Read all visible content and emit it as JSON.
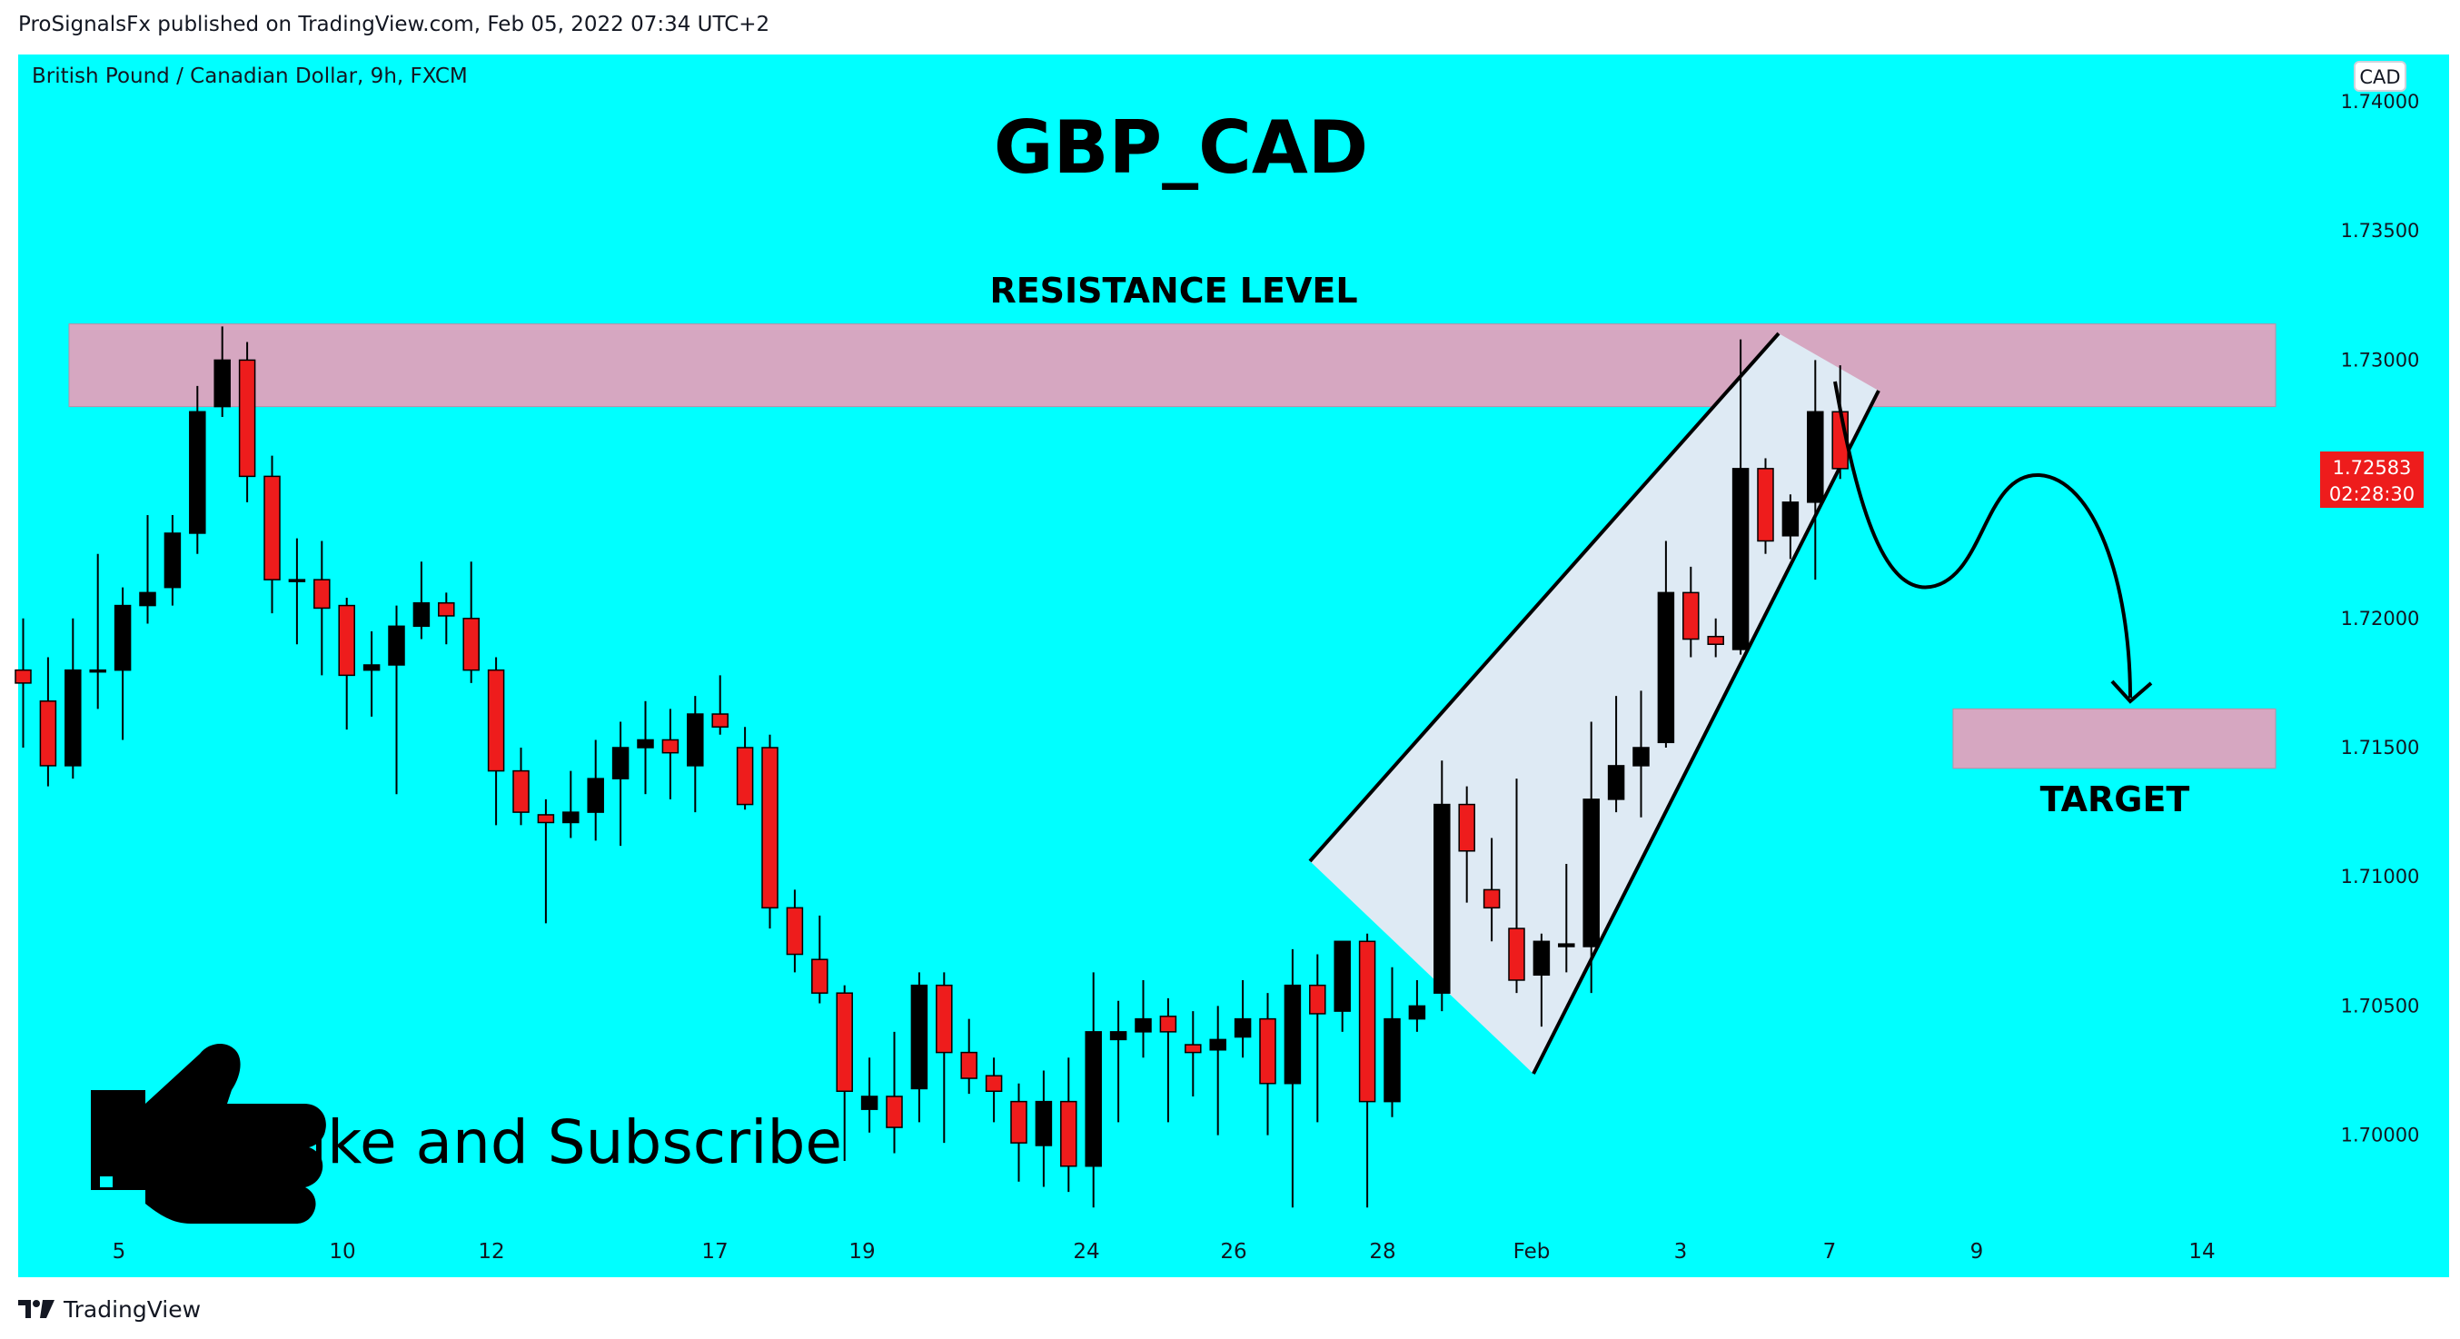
{
  "header": {
    "published": "ProSignalsFx published on TradingView.com, Feb 05, 2022 07:34 UTC+2"
  },
  "symbol": "British Pound / Canadian Dollar, 9h, FXCM",
  "currency_badge": "CAD",
  "price_label": {
    "price": "1.72583",
    "countdown": "02:28:30"
  },
  "footer": {
    "brand": "TradingView"
  },
  "colors": {
    "background": "#00ffff",
    "up": "#000000",
    "down": "#ee1c1c",
    "zone": "#d6a7c1",
    "wedge": "#deeaf4"
  },
  "chart_data": {
    "type": "candlestick",
    "title": "GBP_CAD",
    "annotations": [
      "RESISTANCE LEVEL",
      "TARGET",
      "Like and Subscribe"
    ],
    "y_axis": {
      "ticks": [
        "1.74000",
        "1.73500",
        "1.73000",
        "1.72500",
        "1.72000",
        "1.71500",
        "1.71000",
        "1.70500",
        "1.70000"
      ],
      "ylim": [
        1.6955,
        1.7412
      ],
      "last": 1.72583
    },
    "x_axis": {
      "ticks": [
        "5",
        "10",
        "12",
        "17",
        "19",
        "24",
        "26",
        "28",
        "Feb",
        "3",
        "7",
        "9",
        "14"
      ]
    },
    "zones": [
      {
        "label": "RESISTANCE LEVEL",
        "from": 1.7282,
        "to": 1.7314
      },
      {
        "label": "TARGET",
        "from": 1.7142,
        "to": 1.7165
      }
    ],
    "candles": [
      {
        "o": 1.718,
        "h": 1.72,
        "l": 1.715,
        "c": 1.7175
      },
      {
        "o": 1.7168,
        "h": 1.7185,
        "l": 1.7135,
        "c": 1.7143
      },
      {
        "o": 1.7143,
        "h": 1.72,
        "l": 1.7138,
        "c": 1.718
      },
      {
        "o": 1.718,
        "h": 1.7225,
        "l": 1.7165,
        "c": 1.718
      },
      {
        "o": 1.718,
        "h": 1.7212,
        "l": 1.7153,
        "c": 1.7205
      },
      {
        "o": 1.7205,
        "h": 1.724,
        "l": 1.7198,
        "c": 1.721
      },
      {
        "o": 1.7212,
        "h": 1.724,
        "l": 1.7205,
        "c": 1.7233
      },
      {
        "o": 1.7233,
        "h": 1.729,
        "l": 1.7225,
        "c": 1.728
      },
      {
        "o": 1.7282,
        "h": 1.7313,
        "l": 1.7278,
        "c": 1.73
      },
      {
        "o": 1.73,
        "h": 1.7307,
        "l": 1.7245,
        "c": 1.7255
      },
      {
        "o": 1.7255,
        "h": 1.7263,
        "l": 1.7202,
        "c": 1.7215
      },
      {
        "o": 1.7215,
        "h": 1.7231,
        "l": 1.719,
        "c": 1.7215
      },
      {
        "o": 1.7215,
        "h": 1.723,
        "l": 1.7178,
        "c": 1.7204
      },
      {
        "o": 1.7205,
        "h": 1.7208,
        "l": 1.7157,
        "c": 1.7178
      },
      {
        "o": 1.718,
        "h": 1.7195,
        "l": 1.7162,
        "c": 1.7182
      },
      {
        "o": 1.7182,
        "h": 1.7205,
        "l": 1.7132,
        "c": 1.7197
      },
      {
        "o": 1.7197,
        "h": 1.7222,
        "l": 1.7192,
        "c": 1.7206
      },
      {
        "o": 1.7206,
        "h": 1.721,
        "l": 1.719,
        "c": 1.7201
      },
      {
        "o": 1.72,
        "h": 1.7222,
        "l": 1.7175,
        "c": 1.718
      },
      {
        "o": 1.718,
        "h": 1.7185,
        "l": 1.712,
        "c": 1.7141
      },
      {
        "o": 1.7141,
        "h": 1.715,
        "l": 1.712,
        "c": 1.7125
      },
      {
        "o": 1.7124,
        "h": 1.713,
        "l": 1.7082,
        "c": 1.7121
      },
      {
        "o": 1.7121,
        "h": 1.7141,
        "l": 1.7115,
        "c": 1.7125
      },
      {
        "o": 1.7125,
        "h": 1.7153,
        "l": 1.7114,
        "c": 1.7138
      },
      {
        "o": 1.7138,
        "h": 1.716,
        "l": 1.7112,
        "c": 1.715
      },
      {
        "o": 1.715,
        "h": 1.7168,
        "l": 1.7132,
        "c": 1.7153
      },
      {
        "o": 1.7153,
        "h": 1.7165,
        "l": 1.713,
        "c": 1.7148
      },
      {
        "o": 1.7143,
        "h": 1.717,
        "l": 1.7125,
        "c": 1.7163
      },
      {
        "o": 1.7163,
        "h": 1.7178,
        "l": 1.7155,
        "c": 1.7158
      },
      {
        "o": 1.715,
        "h": 1.7158,
        "l": 1.7126,
        "c": 1.7128
      },
      {
        "o": 1.715,
        "h": 1.7155,
        "l": 1.708,
        "c": 1.7088
      },
      {
        "o": 1.7088,
        "h": 1.7095,
        "l": 1.7063,
        "c": 1.707
      },
      {
        "o": 1.7068,
        "h": 1.7085,
        "l": 1.7051,
        "c": 1.7055
      },
      {
        "o": 1.7055,
        "h": 1.7058,
        "l": 1.699,
        "c": 1.7017
      },
      {
        "o": 1.701,
        "h": 1.703,
        "l": 1.7001,
        "c": 1.7015
      },
      {
        "o": 1.7015,
        "h": 1.704,
        "l": 1.6993,
        "c": 1.7003
      },
      {
        "o": 1.7018,
        "h": 1.7063,
        "l": 1.7005,
        "c": 1.7058
      },
      {
        "o": 1.7058,
        "h": 1.7063,
        "l": 1.6997,
        "c": 1.7032
      },
      {
        "o": 1.7032,
        "h": 1.7045,
        "l": 1.7016,
        "c": 1.7022
      },
      {
        "o": 1.7023,
        "h": 1.703,
        "l": 1.7005,
        "c": 1.7017
      },
      {
        "o": 1.7013,
        "h": 1.702,
        "l": 1.6982,
        "c": 1.6997
      },
      {
        "o": 1.6996,
        "h": 1.7025,
        "l": 1.698,
        "c": 1.7013
      },
      {
        "o": 1.7013,
        "h": 1.703,
        "l": 1.6978,
        "c": 1.6988
      },
      {
        "o": 1.6988,
        "h": 1.7063,
        "l": 1.6972,
        "c": 1.704
      },
      {
        "o": 1.7037,
        "h": 1.7052,
        "l": 1.7005,
        "c": 1.704
      },
      {
        "o": 1.704,
        "h": 1.706,
        "l": 1.703,
        "c": 1.7045
      },
      {
        "o": 1.7046,
        "h": 1.7053,
        "l": 1.7005,
        "c": 1.704
      },
      {
        "o": 1.7035,
        "h": 1.7048,
        "l": 1.7015,
        "c": 1.7032
      },
      {
        "o": 1.7033,
        "h": 1.705,
        "l": 1.7,
        "c": 1.7037
      },
      {
        "o": 1.7038,
        "h": 1.706,
        "l": 1.703,
        "c": 1.7045
      },
      {
        "o": 1.7045,
        "h": 1.7055,
        "l": 1.7,
        "c": 1.702
      },
      {
        "o": 1.702,
        "h": 1.7072,
        "l": 1.6972,
        "c": 1.7058
      },
      {
        "o": 1.7058,
        "h": 1.707,
        "l": 1.7005,
        "c": 1.7047
      },
      {
        "o": 1.7048,
        "h": 1.7075,
        "l": 1.704,
        "c": 1.7075
      },
      {
        "o": 1.7075,
        "h": 1.7078,
        "l": 1.6972,
        "c": 1.7013
      },
      {
        "o": 1.7013,
        "h": 1.7065,
        "l": 1.7007,
        "c": 1.7045
      },
      {
        "o": 1.7045,
        "h": 1.706,
        "l": 1.704,
        "c": 1.705
      },
      {
        "o": 1.7055,
        "h": 1.7145,
        "l": 1.7048,
        "c": 1.7128
      },
      {
        "o": 1.7128,
        "h": 1.7135,
        "l": 1.709,
        "c": 1.711
      },
      {
        "o": 1.7095,
        "h": 1.7115,
        "l": 1.7075,
        "c": 1.7088
      },
      {
        "o": 1.708,
        "h": 1.7138,
        "l": 1.7055,
        "c": 1.706
      },
      {
        "o": 1.7062,
        "h": 1.7078,
        "l": 1.7042,
        "c": 1.7075
      },
      {
        "o": 1.7073,
        "h": 1.7105,
        "l": 1.7063,
        "c": 1.7074
      },
      {
        "o": 1.7073,
        "h": 1.716,
        "l": 1.7055,
        "c": 1.713
      },
      {
        "o": 1.713,
        "h": 1.717,
        "l": 1.7125,
        "c": 1.7143
      },
      {
        "o": 1.7143,
        "h": 1.7172,
        "l": 1.7123,
        "c": 1.715
      },
      {
        "o": 1.7152,
        "h": 1.723,
        "l": 1.715,
        "c": 1.721
      },
      {
        "o": 1.721,
        "h": 1.722,
        "l": 1.7185,
        "c": 1.7192
      },
      {
        "o": 1.7193,
        "h": 1.72,
        "l": 1.7185,
        "c": 1.719
      },
      {
        "o": 1.7188,
        "h": 1.7308,
        "l": 1.7186,
        "c": 1.7258
      },
      {
        "o": 1.7258,
        "h": 1.7262,
        "l": 1.7225,
        "c": 1.723
      },
      {
        "o": 1.7232,
        "h": 1.7248,
        "l": 1.7223,
        "c": 1.7245
      },
      {
        "o": 1.7245,
        "h": 1.73,
        "l": 1.7215,
        "c": 1.728
      },
      {
        "o": 1.728,
        "h": 1.7298,
        "l": 1.7254,
        "c": 1.7258
      }
    ]
  }
}
